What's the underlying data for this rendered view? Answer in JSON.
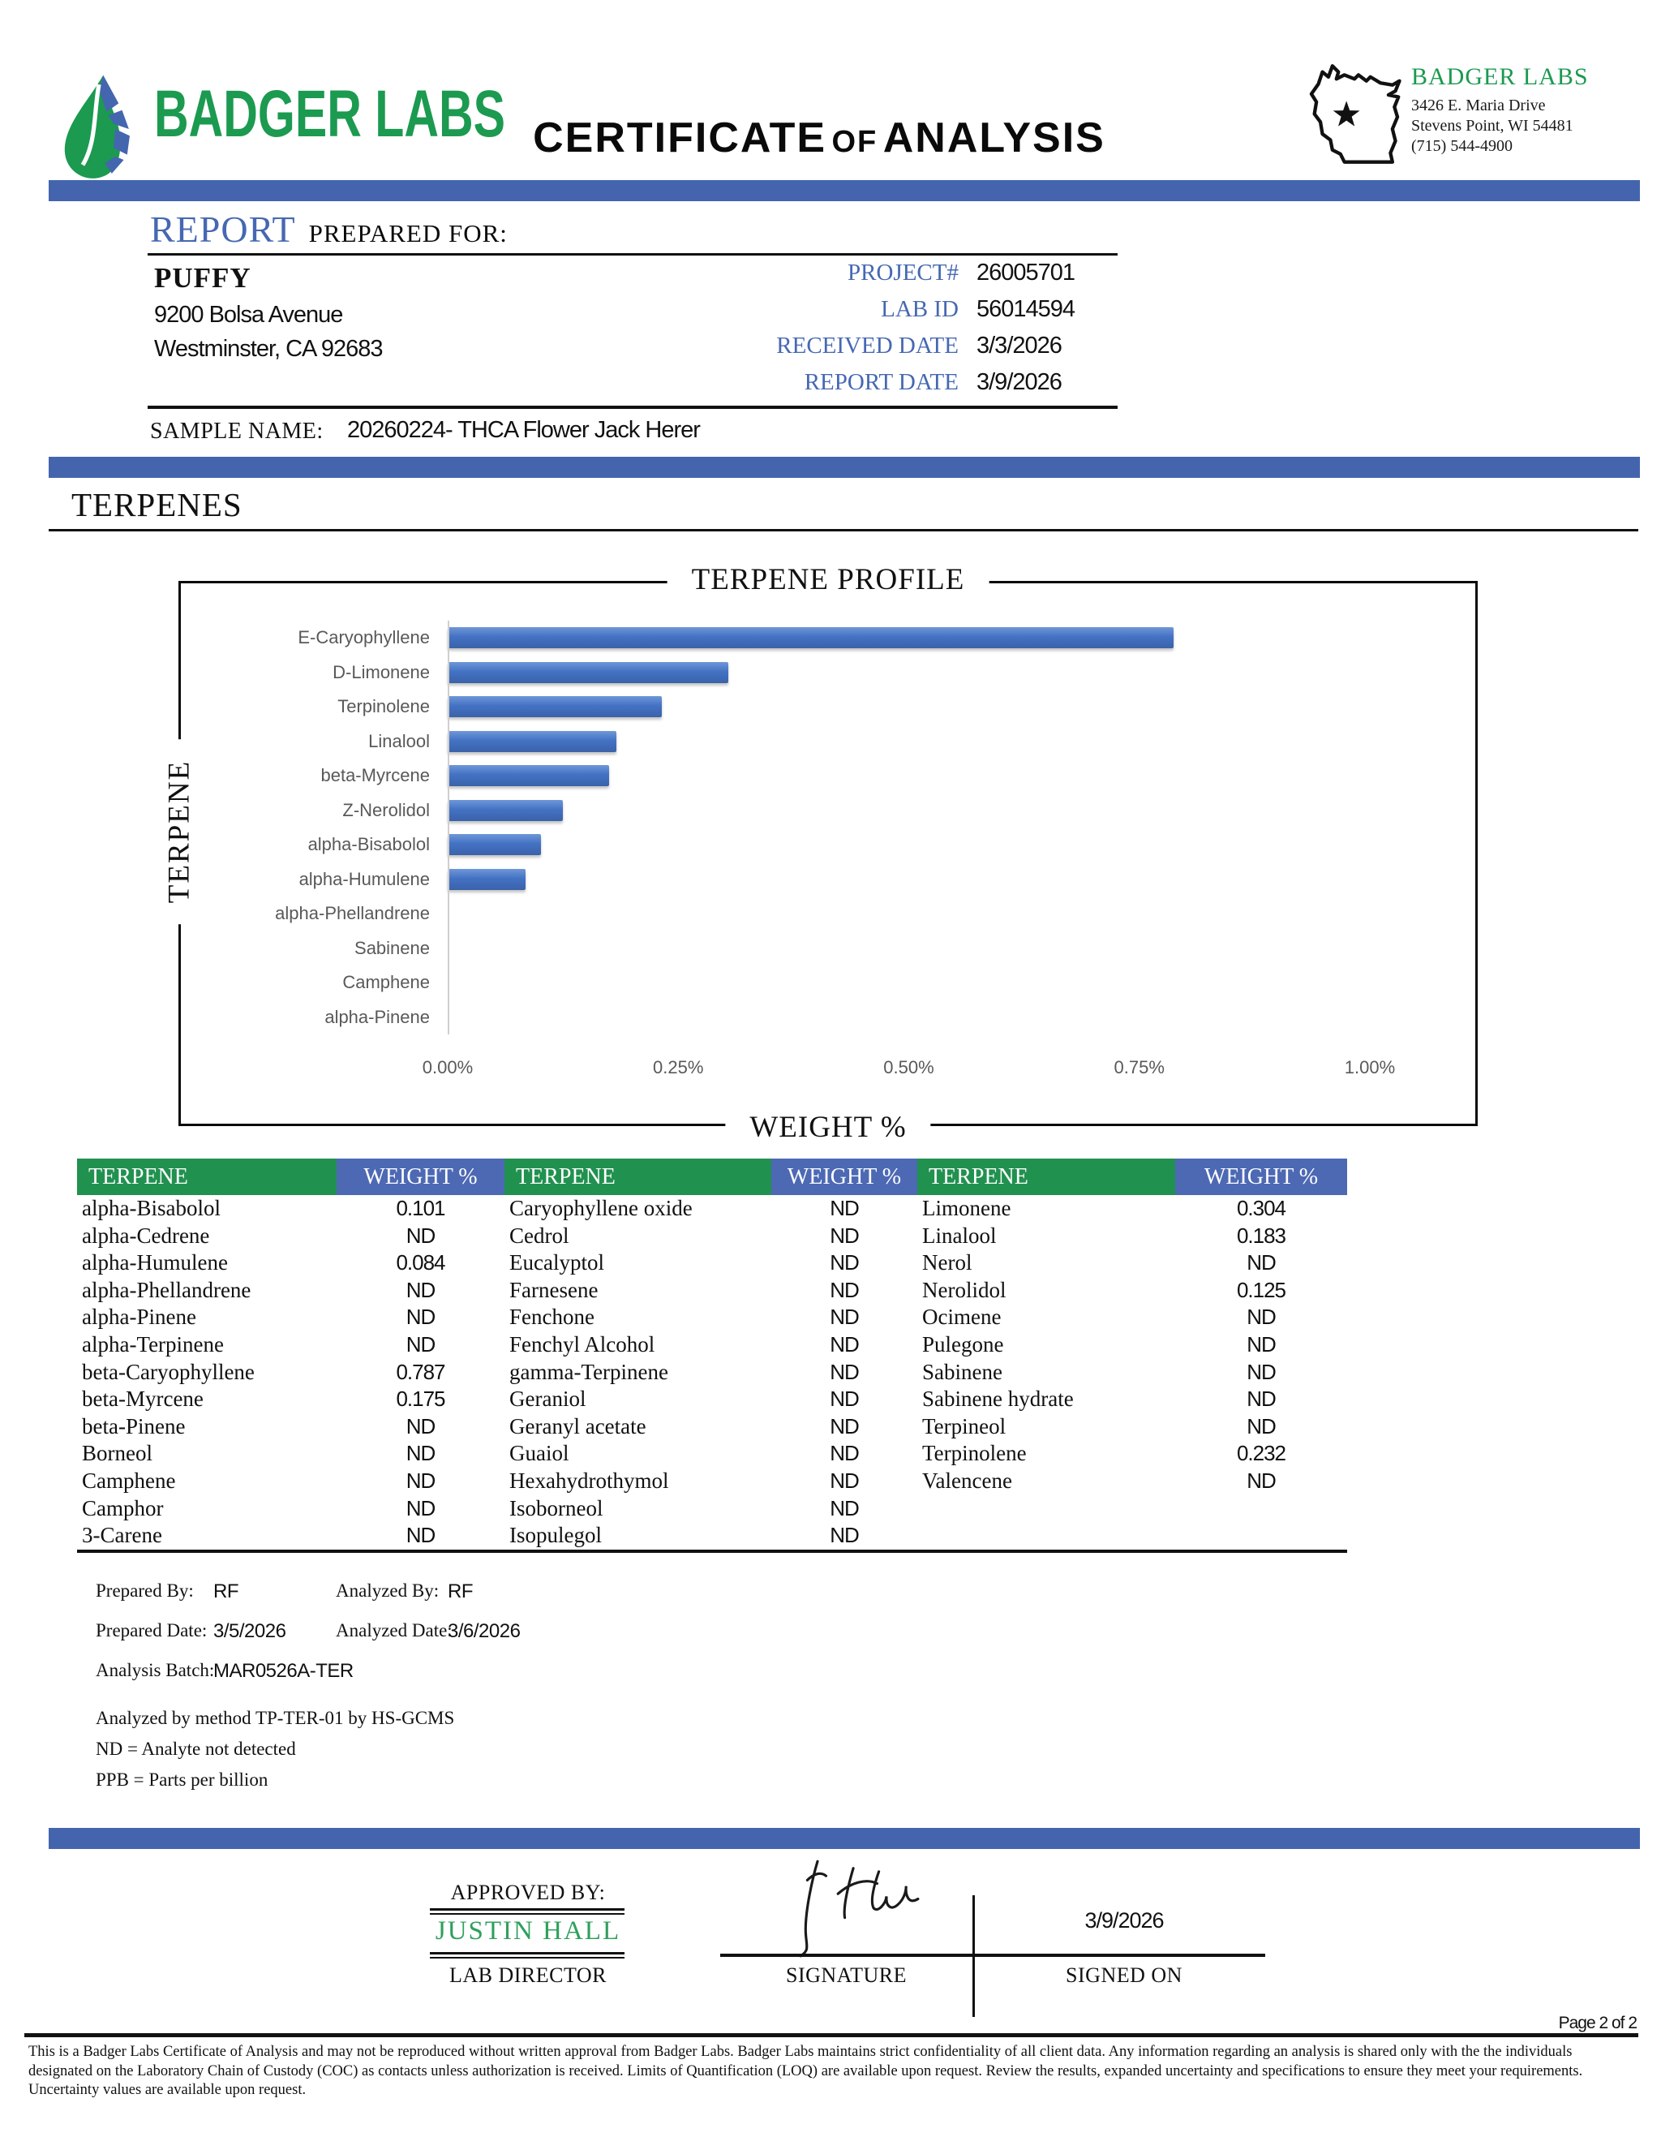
{
  "header": {
    "logo_text": "BADGER LABS",
    "title_parts": {
      "p1": "CERTIFICATE",
      "p2": "OF",
      "p3": "ANALYSIS"
    },
    "lab_info": {
      "name": "BADGER LABS",
      "address_line1": "3426 E. Maria Drive",
      "address_line2": "Stevens Point, WI 54481",
      "phone": "(715) 544-4900"
    }
  },
  "report": {
    "heading_primary": "REPORT",
    "heading_secondary": "PREPARED FOR:",
    "client": {
      "name": "PUFFY",
      "address_line1": "9200 Bolsa Avenue",
      "address_line2": "Westminster, CA 92683"
    },
    "meta": [
      {
        "label": "PROJECT#",
        "value": "26005701"
      },
      {
        "label": "LAB ID",
        "value": "56014594"
      },
      {
        "label": "RECEIVED DATE",
        "value": "3/3/2026"
      },
      {
        "label": "REPORT DATE",
        "value": "3/9/2026"
      }
    ],
    "sample_label": "SAMPLE NAME:",
    "sample_value": "20260224- THCA Flower Jack Herer"
  },
  "section_title": "TERPENES",
  "chart_data": {
    "type": "bar",
    "orientation": "horizontal",
    "title": "TERPENE PROFILE",
    "xlabel": "WEIGHT %",
    "ylabel": "TERPENE",
    "categories": [
      "E-Caryophyllene",
      "D-Limonene",
      "Terpinolene",
      "Linalool",
      "beta-Myrcene",
      "Z-Nerolidol",
      "alpha-Bisabolol",
      "alpha-Humulene",
      "alpha-Phellandrene",
      "Sabinene",
      "Camphene",
      "alpha-Pinene"
    ],
    "values": [
      0.787,
      0.304,
      0.232,
      0.183,
      0.175,
      0.125,
      0.101,
      0.084,
      0,
      0,
      0,
      0
    ],
    "x_ticks": [
      "0.00%",
      "0.25%",
      "0.50%",
      "0.75%",
      "1.00%"
    ],
    "xlim": [
      0,
      1.0
    ],
    "grid": false,
    "bar_color": "#4472C4"
  },
  "table": {
    "header": {
      "terpene": "TERPENE",
      "weight": "WEIGHT %"
    },
    "columns": [
      {
        "rows": [
          [
            "alpha-Bisabolol",
            "0.101"
          ],
          [
            "alpha-Cedrene",
            "ND"
          ],
          [
            "alpha-Humulene",
            "0.084"
          ],
          [
            "alpha-Phellandrene",
            "ND"
          ],
          [
            "alpha-Pinene",
            "ND"
          ],
          [
            "alpha-Terpinene",
            "ND"
          ],
          [
            "beta-Caryophyllene",
            "0.787"
          ],
          [
            "beta-Myrcene",
            "0.175"
          ],
          [
            "beta-Pinene",
            "ND"
          ],
          [
            "Borneol",
            "ND"
          ],
          [
            "Camphene",
            "ND"
          ],
          [
            "Camphor",
            "ND"
          ],
          [
            "3-Carene",
            "ND"
          ]
        ]
      },
      {
        "rows": [
          [
            "Caryophyllene oxide",
            "ND"
          ],
          [
            "Cedrol",
            "ND"
          ],
          [
            "Eucalyptol",
            "ND"
          ],
          [
            "Farnesene",
            "ND"
          ],
          [
            "Fenchone",
            "ND"
          ],
          [
            "Fenchyl Alcohol",
            "ND"
          ],
          [
            "gamma-Terpinene",
            "ND"
          ],
          [
            "Geraniol",
            "ND"
          ],
          [
            "Geranyl acetate",
            "ND"
          ],
          [
            "Guaiol",
            "ND"
          ],
          [
            "Hexahydrothymol",
            "ND"
          ],
          [
            "Isoborneol",
            "ND"
          ],
          [
            "Isopulegol",
            "ND"
          ]
        ]
      },
      {
        "rows": [
          [
            "Limonene",
            "0.304"
          ],
          [
            "Linalool",
            "0.183"
          ],
          [
            "Nerol",
            "ND"
          ],
          [
            "Nerolidol",
            "0.125"
          ],
          [
            "Ocimene",
            "ND"
          ],
          [
            "Pulegone",
            "ND"
          ],
          [
            "Sabinene",
            "ND"
          ],
          [
            "Sabinene hydrate",
            "ND"
          ],
          [
            "Terpineol",
            "ND"
          ],
          [
            "Terpinolene",
            "0.232"
          ],
          [
            "Valencene",
            "ND"
          ]
        ]
      }
    ]
  },
  "notes": {
    "prepared_by_label": "Prepared By:",
    "prepared_by": "RF",
    "analyzed_by_label": "Analyzed By:",
    "analyzed_by": "RF",
    "prepared_date_label": "Prepared Date:",
    "prepared_date": "3/5/2026",
    "analyzed_date_label": "Analyzed Date:",
    "analyzed_date": "3/6/2026",
    "analysis_batch_label": "Analysis Batch:",
    "analysis_batch": "MAR0526A-TER",
    "method": "Analyzed by method TP-TER-01 by HS-GCMS",
    "nd_note": "ND = Analyte not detected",
    "ppb_note": "PPB = Parts per billion"
  },
  "approval": {
    "approved_by_label": "APPROVED BY:",
    "approver_name": "JUSTIN HALL",
    "approver_title": "LAB DIRECTOR",
    "signature_label": "SIGNATURE",
    "signed_on_label": "SIGNED ON",
    "signed_on_date": "3/9/2026"
  },
  "footer": {
    "page": "Page 2 of 2",
    "disclaimer": "This is a Badger Labs Certificate of Analysis and may not be reproduced without written approval from Badger Labs. Badger Labs maintains strict confidentiality of all client data. Any information regarding an analysis is shared only with the the individuals designated on the Laboratory Chain of Custody (COC) as contacts unless authorization is received. Limits of Quantification (LOQ) are available upon request. Review the results, expanded uncertainty and specifications to ensure they meet your requirements. Uncertainty values are available upon request."
  },
  "colors": {
    "accent_blue_bar": "#4465AE",
    "report_heading_blue": "#4668B2",
    "table_header_green": "#21914F",
    "table_header_blue": "#4D69B4",
    "logo_green": "#1B9A50",
    "approver_green": "#2FA05C",
    "chart_bar_blue": "#4472C4",
    "chart_text_gray": "#595959"
  }
}
